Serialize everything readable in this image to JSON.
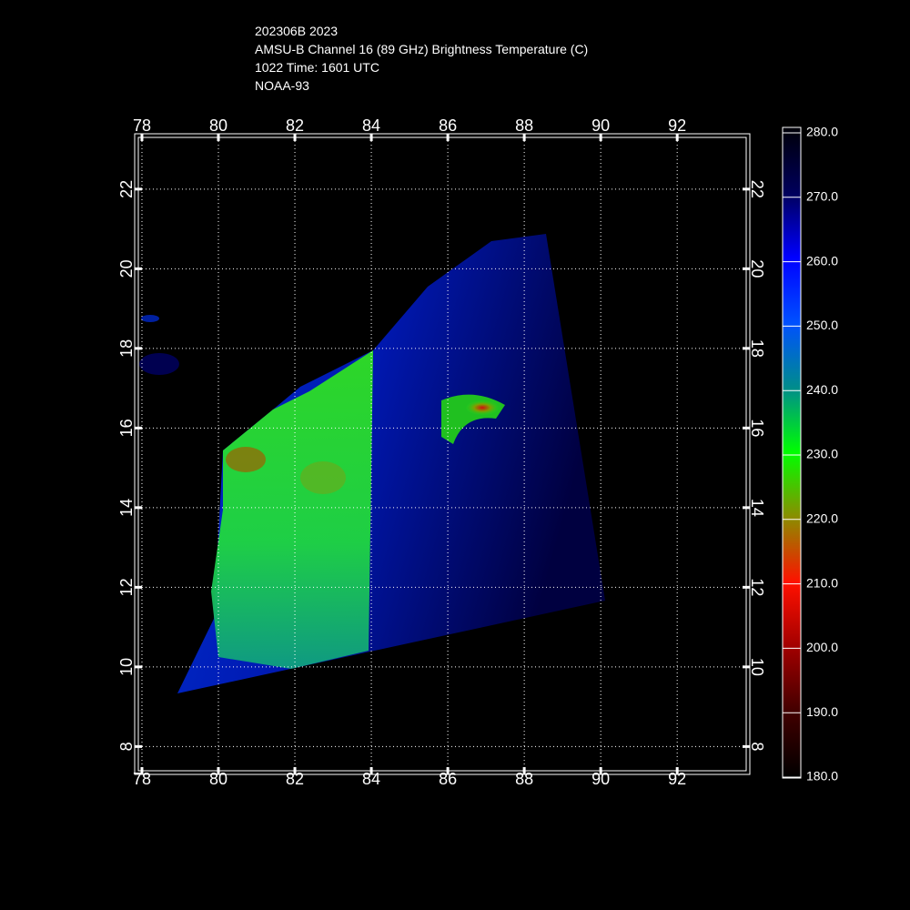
{
  "header": {
    "lines": [
      "202306B 2023",
      "AMSU-B Channel 16 (89 GHz) Brightness Temperature (C)",
      "1022 Time: 1601 UTC",
      "NOAA-93"
    ]
  },
  "map": {
    "xlim": [
      77.81,
      93.9
    ],
    "ylim": [
      7.3,
      23.39
    ],
    "xticks": [
      78,
      80,
      82,
      84,
      86,
      88,
      90,
      92
    ],
    "yticks": [
      8,
      10,
      12,
      14,
      16,
      18,
      20,
      22
    ],
    "grid": true
  },
  "colorbar": {
    "lim": [
      180,
      280
    ],
    "ticks": [
      {
        "value": 280,
        "label": "280.0"
      },
      {
        "value": 270,
        "label": "270.0"
      },
      {
        "value": 260,
        "label": "260.0"
      },
      {
        "value": 250,
        "label": "250.0"
      },
      {
        "value": 240,
        "label": "240.0"
      },
      {
        "value": 230,
        "label": "230.0"
      },
      {
        "value": 220,
        "label": "220.0"
      },
      {
        "value": 210,
        "label": "210.0"
      },
      {
        "value": 200,
        "label": "200.0"
      },
      {
        "value": 190,
        "label": "190.0"
      },
      {
        "value": 180,
        "label": "180.0"
      }
    ],
    "colors": [
      "#000008",
      "#00005a",
      "#0000ff",
      "#0050ff",
      "#008c8c",
      "#00ff00",
      "#8c8c00",
      "#ff1000",
      "#a00000",
      "#400000",
      "#000000"
    ]
  }
}
